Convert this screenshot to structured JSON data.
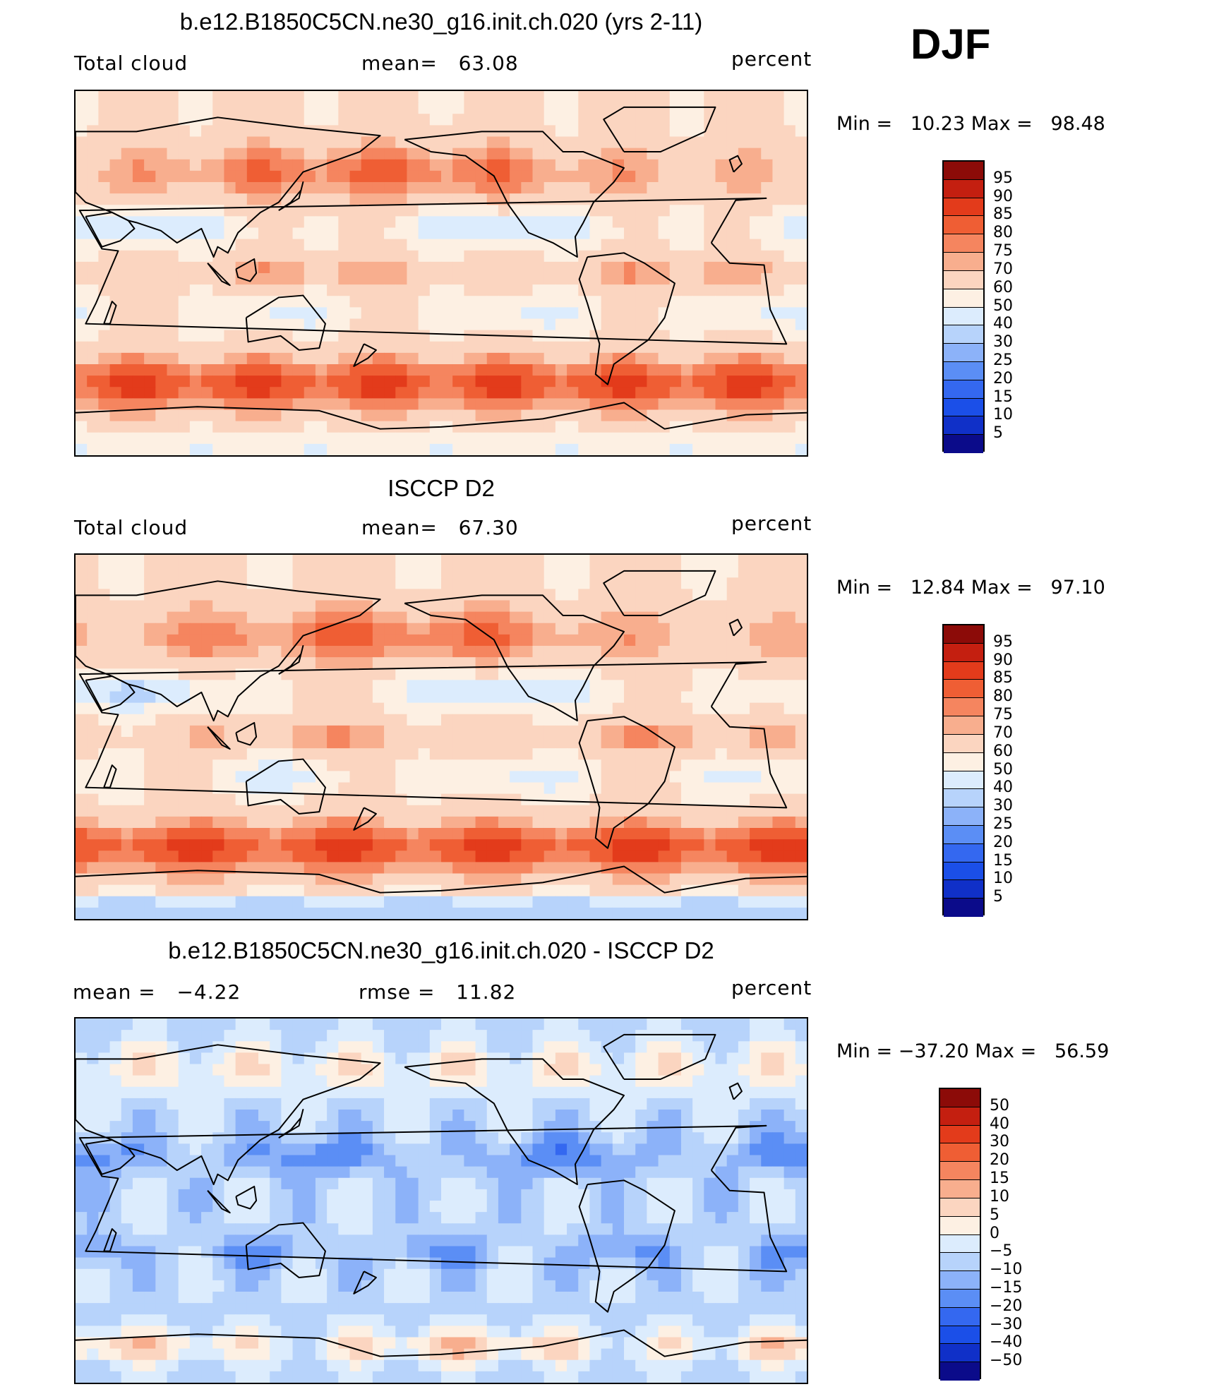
{
  "season": "DJF",
  "palette": [
    "#0b0b8a",
    "#1030c8",
    "#1b4fe8",
    "#3468f0",
    "#5b8ef5",
    "#8cb2f9",
    "#b7d3fb",
    "#dcecfd",
    "#fdf0e3",
    "#fbd5c0",
    "#f8ae8e",
    "#f5855f",
    "#ef5e34",
    "#e33b1b",
    "#c41f10",
    "#8c0b08"
  ],
  "panels": [
    {
      "title": "b.e12.B1850C5CN.ne30_g16.init.ch.020 (yrs 2-11)",
      "left_label": "Total cloud",
      "center_label": "mean=   63.08",
      "right_label": "percent",
      "min_max": "Min =   10.23 Max =   98.48",
      "colorbar_labels": [
        "95",
        "90",
        "85",
        "80",
        "75",
        "70",
        "60",
        "50",
        "40",
        "30",
        "25",
        "20",
        "15",
        "10",
        "5"
      ],
      "field": "model"
    },
    {
      "title": "ISCCP D2",
      "left_label": "Total cloud",
      "center_label": "mean=   67.30",
      "right_label": "percent",
      "min_max": "Min =   12.84 Max =   97.10",
      "colorbar_labels": [
        "95",
        "90",
        "85",
        "80",
        "75",
        "70",
        "60",
        "50",
        "40",
        "30",
        "25",
        "20",
        "15",
        "10",
        "5"
      ],
      "field": "obs"
    },
    {
      "title": "b.e12.B1850C5CN.ne30_g16.init.ch.020 - ISCCP D2",
      "left_label": "mean =   −4.22",
      "center_label": "rmse =   11.82",
      "right_label": "percent",
      "min_max": "Min = −37.20 Max =   56.59",
      "colorbar_labels": [
        "50",
        "40",
        "30",
        "20",
        "15",
        "10",
        "5",
        "0",
        "−5",
        "−10",
        "−15",
        "−20",
        "−30",
        "−40",
        "−50"
      ],
      "field": "diff"
    }
  ]
}
